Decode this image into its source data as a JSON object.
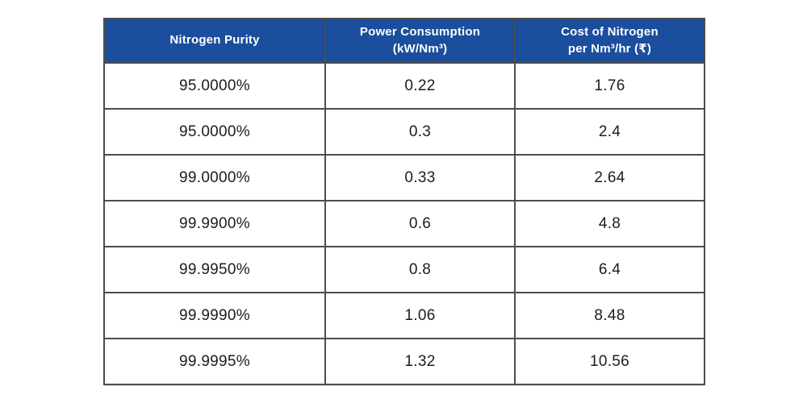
{
  "table": {
    "headers": [
      {
        "line1": "Nitrogen Purity",
        "line2": ""
      },
      {
        "line1": "Power Consumption",
        "line2": "(kW/Nm³)"
      },
      {
        "line1": "Cost of Nitrogen",
        "line2": "per Nm³/hr (₹)"
      }
    ],
    "rows": [
      [
        "95.0000%",
        "0.22",
        "1.76"
      ],
      [
        "95.0000%",
        "0.3",
        "2.4"
      ],
      [
        "99.0000%",
        "0.33",
        "2.64"
      ],
      [
        "99.9900%",
        "0.6",
        "4.8"
      ],
      [
        "99.9950%",
        "0.8",
        "6.4"
      ],
      [
        "99.9990%",
        "1.06",
        "8.48"
      ],
      [
        "99.9995%",
        "1.32",
        "10.56"
      ]
    ]
  },
  "colors": {
    "header_bg": "#1b4e9c",
    "header_text": "#ffffff",
    "cell_text": "#1c1c1c",
    "border": "#4d4d4d",
    "background": "#ffffff"
  },
  "chart_data": {
    "type": "table",
    "title": "",
    "columns": [
      "Nitrogen Purity",
      "Power Consumption (kW/Nm³)",
      "Cost of Nitrogen per Nm³/hr (₹)"
    ],
    "rows": [
      [
        "95.0000%",
        0.22,
        1.76
      ],
      [
        "95.0000%",
        0.3,
        2.4
      ],
      [
        "99.0000%",
        0.33,
        2.64
      ],
      [
        "99.9900%",
        0.6,
        4.8
      ],
      [
        "99.9950%",
        0.8,
        6.4
      ],
      [
        "99.9990%",
        1.06,
        8.48
      ],
      [
        "99.9995%",
        1.32,
        10.56
      ]
    ]
  }
}
